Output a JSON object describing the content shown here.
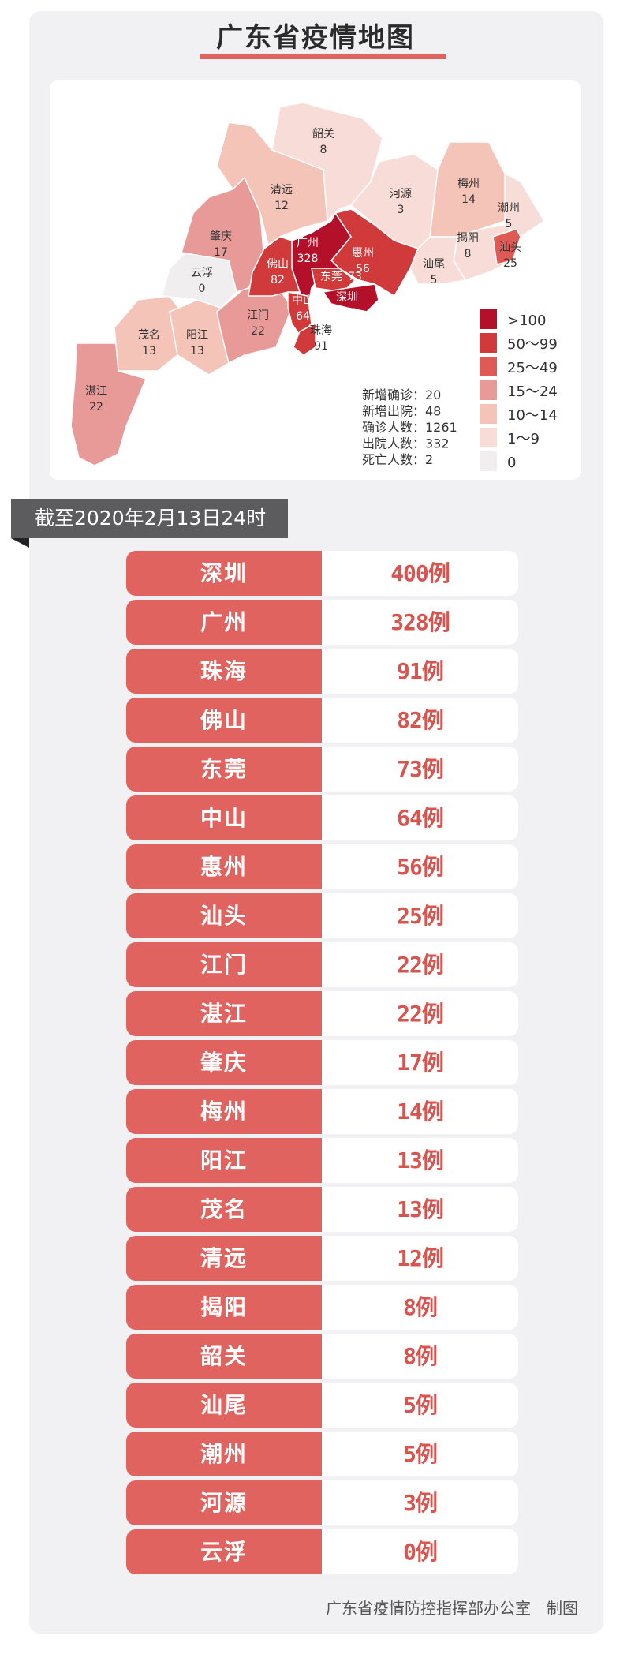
{
  "title": "广东省疫情地图",
  "colors": {
    "gt100": "#b5102a",
    "50_99": "#d03a3a",
    "25_49": "#e05a55",
    "15_24": "#e89a98",
    "10_14": "#f5c4b8",
    "1_9": "#f8dcd8",
    "0": "#f1eef0",
    "row_red": "#e0635f",
    "value_red": "#d9534f"
  },
  "map": {
    "regions": [
      {
        "name": "湛江",
        "value": "22"
      },
      {
        "name": "茂名",
        "value": "13"
      },
      {
        "name": "阳江",
        "value": "13"
      },
      {
        "name": "江门",
        "value": "22"
      },
      {
        "name": "云浮",
        "value": "0"
      },
      {
        "name": "肇庆",
        "value": "17"
      },
      {
        "name": "清远",
        "value": "12"
      },
      {
        "name": "韶关",
        "value": "8"
      },
      {
        "name": "河源",
        "value": "3"
      },
      {
        "name": "梅州",
        "value": "14"
      },
      {
        "name": "潮州",
        "value": "5"
      },
      {
        "name": "揭阳",
        "value": "8"
      },
      {
        "name": "汕头",
        "value": "25"
      },
      {
        "name": "汕尾",
        "value": "5"
      },
      {
        "name": "惠州",
        "value": "56"
      },
      {
        "name": "广州",
        "value": "328"
      },
      {
        "name": "东莞",
        "value": "73"
      },
      {
        "name": "深圳",
        "value": "400"
      },
      {
        "name": "佛山",
        "value": "82"
      },
      {
        "name": "中山",
        "value": "64"
      },
      {
        "name": "珠海",
        "value": "91"
      }
    ],
    "legend": [
      ">100",
      "50～99",
      "25～49",
      "15～24",
      "10～14",
      "1～9",
      "0"
    ],
    "stats": [
      "新增确诊：20",
      "新增出院：48",
      "确诊人数：1261",
      "出院人数：332",
      "死亡人数：2"
    ]
  },
  "date_banner": "截至2020年2月13日24时",
  "table": [
    {
      "city": "深圳",
      "value": "400例"
    },
    {
      "city": "广州",
      "value": "328例"
    },
    {
      "city": "珠海",
      "value": "91例"
    },
    {
      "city": "佛山",
      "value": "82例"
    },
    {
      "city": "东莞",
      "value": "73例"
    },
    {
      "city": "中山",
      "value": "64例"
    },
    {
      "city": "惠州",
      "value": "56例"
    },
    {
      "city": "汕头",
      "value": "25例"
    },
    {
      "city": "江门",
      "value": "22例"
    },
    {
      "city": "湛江",
      "value": "22例"
    },
    {
      "city": "肇庆",
      "value": "17例"
    },
    {
      "city": "梅州",
      "value": "14例"
    },
    {
      "city": "阳江",
      "value": "13例"
    },
    {
      "city": "茂名",
      "value": "13例"
    },
    {
      "city": "清远",
      "value": "12例"
    },
    {
      "city": "揭阳",
      "value": "8例"
    },
    {
      "city": "韶关",
      "value": "8例"
    },
    {
      "city": "汕尾",
      "value": "5例"
    },
    {
      "city": "潮州",
      "value": "5例"
    },
    {
      "city": "河源",
      "value": "3例"
    },
    {
      "city": "云浮",
      "value": "0例"
    }
  ],
  "footer": "广东省疫情防控指挥部办公室　制图"
}
